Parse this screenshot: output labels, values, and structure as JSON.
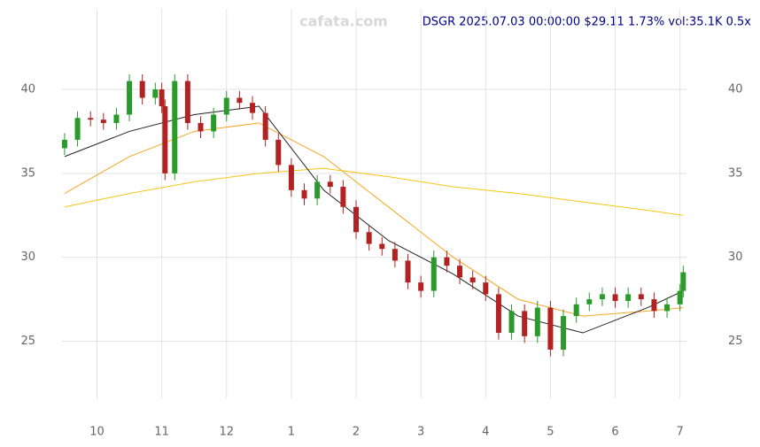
{
  "chart_data": {
    "type": "candlestick",
    "title": "DSGR 2025.07.03 00:00:00 $29.11 1.73% vol:35.1K 0.5x",
    "watermark": "cafata.com",
    "x": [
      9.5,
      9.7,
      9.9,
      10.1,
      10.3,
      10.5,
      10.7,
      10.9,
      11.0,
      11.05,
      11.2,
      11.4,
      11.6,
      11.8,
      12.0,
      12.2,
      12.4,
      12.6,
      12.8,
      13.0,
      13.2,
      13.4,
      13.6,
      13.8,
      14.0,
      14.2,
      14.4,
      14.6,
      14.8,
      15.0,
      15.2,
      15.4,
      15.6,
      15.8,
      16.0,
      16.2,
      16.4,
      16.6,
      16.8,
      17.0,
      17.2,
      17.4,
      17.6,
      17.8,
      18.0,
      18.2,
      18.4,
      18.6,
      18.8,
      19.0,
      19.05
    ],
    "open": [
      36.5,
      37,
      38.3,
      38.2,
      38,
      38.5,
      40.5,
      39.5,
      40,
      39,
      35,
      40.5,
      38,
      37.5,
      38.5,
      39.5,
      39.2,
      38.6,
      37,
      35.5,
      34,
      33.5,
      34.5,
      34.2,
      33,
      31.5,
      30.8,
      30.5,
      29.8,
      28.5,
      28,
      30,
      29.5,
      28.8,
      28.5,
      27.8,
      25.5,
      26.8,
      25.3,
      27,
      24.5,
      26.5,
      27.2,
      27.5,
      27.8,
      27.4,
      27.8,
      27.5,
      26.8,
      27.2,
      28
    ],
    "high": [
      37.4,
      38.7,
      38.7,
      38.6,
      38.9,
      40.9,
      40.9,
      40.4,
      40.4,
      39.4,
      40.9,
      40.9,
      38.4,
      38.9,
      39.9,
      39.9,
      39.6,
      39,
      37.4,
      35.9,
      34.4,
      34.9,
      34.9,
      34.6,
      33.4,
      31.9,
      31.2,
      30.9,
      30.2,
      28.9,
      30.4,
      30.4,
      29.9,
      29.2,
      28.9,
      28.2,
      27.2,
      27.2,
      27.4,
      27.4,
      26.9,
      27.6,
      27.9,
      28.2,
      28.2,
      28.2,
      28.2,
      27.9,
      27.6,
      28.4,
      29.5
    ],
    "low": [
      36.1,
      36.6,
      37.8,
      37.6,
      37.6,
      38.1,
      39.1,
      39.1,
      38.6,
      34.6,
      34.6,
      37.6,
      37.1,
      37.1,
      38.1,
      38.8,
      38.2,
      36.6,
      35.1,
      33.6,
      33.1,
      33.1,
      33.8,
      32.6,
      31.1,
      30.4,
      30.1,
      29.4,
      28.1,
      27.6,
      27.6,
      29.1,
      28.4,
      28.1,
      27.4,
      25.1,
      25.1,
      24.9,
      24.9,
      24.1,
      24.1,
      26.1,
      26.8,
      27.1,
      27,
      27,
      27.1,
      26.4,
      26.4,
      26.8,
      27.6
    ],
    "close": [
      37,
      38.3,
      38.2,
      38,
      38.5,
      40.5,
      39.5,
      40,
      39,
      35,
      40.5,
      38,
      37.5,
      38.5,
      39.5,
      39.2,
      38.6,
      37,
      35.5,
      34,
      33.5,
      34.5,
      34.2,
      33,
      31.5,
      30.8,
      30.5,
      29.8,
      28.5,
      28,
      30,
      29.5,
      28.8,
      28.5,
      27.8,
      25.5,
      26.8,
      25.3,
      27,
      24.5,
      26.5,
      27.2,
      27.5,
      27.8,
      27.4,
      27.8,
      27.5,
      26.8,
      27.2,
      28,
      29.11
    ],
    "up_color": "#2a9a2a",
    "down_color": "#b22222",
    "overlays": [
      {
        "color": "#f5a623",
        "x": [
          9.5,
          10.5,
          11.5,
          12.5,
          13.5,
          14.5,
          15.5,
          16.5,
          17.5,
          18.5,
          19.05
        ],
        "values": [
          33.8,
          36,
          37.5,
          38,
          36,
          33,
          30,
          27.5,
          26.5,
          26.8,
          27
        ]
      },
      {
        "color": "#f5c518",
        "x": [
          9.5,
          10.5,
          11.5,
          12.5,
          13.5,
          14.5,
          15.5,
          16.5,
          17.5,
          18.5,
          19.05
        ],
        "values": [
          33,
          33.8,
          34.5,
          35,
          35.3,
          34.8,
          34.2,
          33.8,
          33.3,
          32.8,
          32.5
        ]
      },
      {
        "color": "#222222",
        "x": [
          9.5,
          10.5,
          11.5,
          12.5,
          13.5,
          14.5,
          15.5,
          16.5,
          17.5,
          18.5,
          19.05
        ],
        "values": [
          36,
          37.5,
          38.5,
          39,
          34,
          31,
          29,
          26.5,
          25.5,
          27,
          28
        ]
      }
    ],
    "xlim": [
      9.46,
      19.1
    ],
    "ylim": [
      21.6,
      44.8
    ],
    "xticks": [
      {
        "value": 10,
        "label": "10"
      },
      {
        "value": 11,
        "label": "11"
      },
      {
        "value": 12,
        "label": "12"
      },
      {
        "value": 13,
        "label": "1"
      },
      {
        "value": 14,
        "label": "2"
      },
      {
        "value": 15,
        "label": "3"
      },
      {
        "value": 16,
        "label": "4"
      },
      {
        "value": 17,
        "label": "5"
      },
      {
        "value": 18,
        "label": "6"
      },
      {
        "value": 19,
        "label": "7"
      }
    ],
    "yticks": [
      25,
      30,
      35,
      40
    ],
    "grid": true
  }
}
